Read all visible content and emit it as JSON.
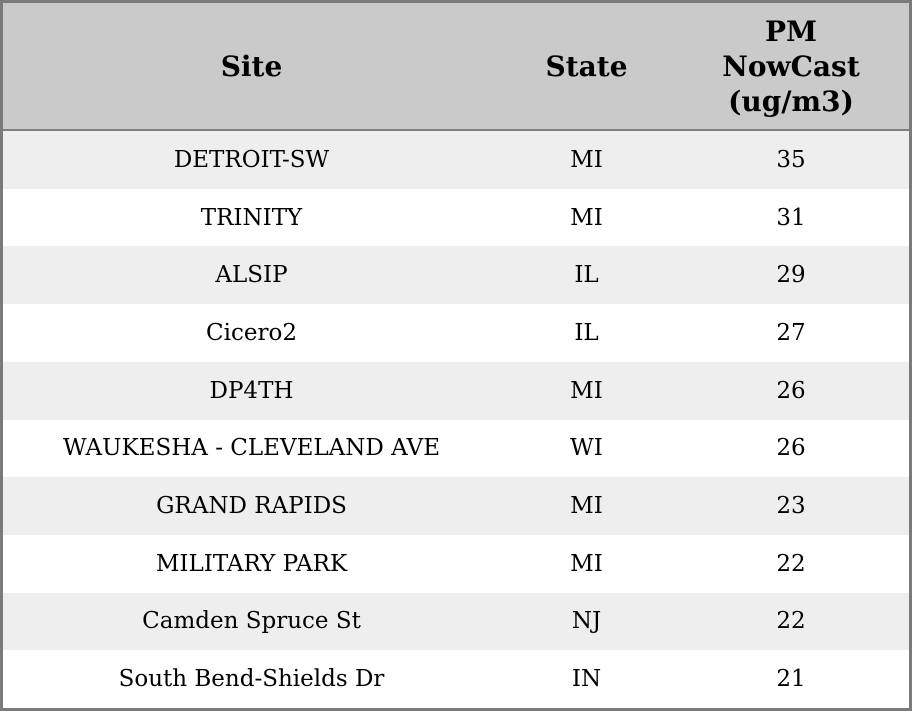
{
  "colors": {
    "header_bg": "#cacaca",
    "row_alt_bg": "#eeeeee",
    "row_bg": "#ffffff",
    "border": "#7a7a7a",
    "text": "#000000"
  },
  "chart_data": {
    "type": "table",
    "title": "",
    "columns": [
      "Site",
      "State",
      "PM NowCast (ug/m3)"
    ],
    "header_display": {
      "site": "Site",
      "state": "State",
      "pm": "PM\nNowCast\n(ug/m3)"
    },
    "rows": [
      {
        "site": "DETROIT-SW",
        "state": "MI",
        "pm_nowcast": 35
      },
      {
        "site": "TRINITY",
        "state": "MI",
        "pm_nowcast": 31
      },
      {
        "site": "ALSIP",
        "state": "IL",
        "pm_nowcast": 29
      },
      {
        "site": "Cicero2",
        "state": "IL",
        "pm_nowcast": 27
      },
      {
        "site": "DP4TH",
        "state": "MI",
        "pm_nowcast": 26
      },
      {
        "site": "WAUKESHA - CLEVELAND AVE",
        "state": "WI",
        "pm_nowcast": 26
      },
      {
        "site": "GRAND RAPIDS",
        "state": "MI",
        "pm_nowcast": 23
      },
      {
        "site": "MILITARY PARK",
        "state": "MI",
        "pm_nowcast": 22
      },
      {
        "site": "Camden Spruce St",
        "state": "NJ",
        "pm_nowcast": 22
      },
      {
        "site": "South Bend-Shields Dr",
        "state": "IN",
        "pm_nowcast": 21
      }
    ]
  }
}
